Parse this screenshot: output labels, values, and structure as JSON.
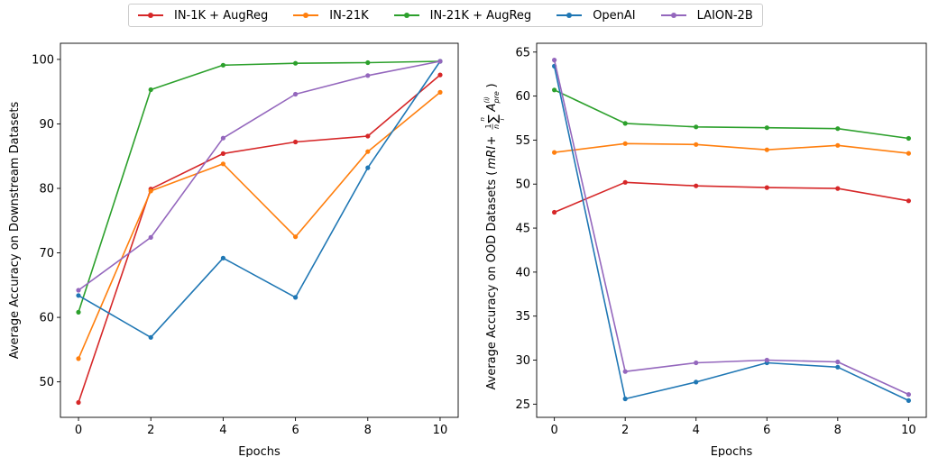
{
  "legend": [
    {
      "name": "IN-1K + AugReg",
      "color": "#d62728"
    },
    {
      "name": "IN-21K",
      "color": "#ff7f0e"
    },
    {
      "name": "IN-21K + AugReg",
      "color": "#2ca02c"
    },
    {
      "name": "OpenAI",
      "color": "#1f77b4"
    },
    {
      "name": "LAION-2B",
      "color": "#9467bd"
    }
  ],
  "chart_data": [
    {
      "type": "line",
      "title": "",
      "xlabel": "Epochs",
      "ylabel": "Average Accuracy on Downstream Datasets",
      "x": [
        0,
        2,
        4,
        6,
        8,
        10
      ],
      "xlim": [
        -0.5,
        10.5
      ],
      "ylim": [
        44.5,
        102.5
      ],
      "xticks": [
        0,
        2,
        4,
        6,
        8,
        10
      ],
      "yticks": [
        50,
        60,
        70,
        80,
        90,
        100
      ],
      "grid": false,
      "series": [
        {
          "name": "IN-1K + AugReg",
          "color": "#d62728",
          "values": [
            46.8,
            79.9,
            85.4,
            87.2,
            88.1,
            97.6
          ]
        },
        {
          "name": "IN-21K",
          "color": "#ff7f0e",
          "values": [
            53.6,
            79.6,
            83.8,
            72.5,
            85.7,
            94.9
          ]
        },
        {
          "name": "IN-21K + AugReg",
          "color": "#2ca02c",
          "values": [
            60.8,
            95.3,
            99.1,
            99.4,
            99.5,
            99.7
          ]
        },
        {
          "name": "OpenAI",
          "color": "#1f77b4",
          "values": [
            63.4,
            56.9,
            69.2,
            63.1,
            83.2,
            99.7
          ]
        },
        {
          "name": "LAION-2B",
          "color": "#9467bd",
          "values": [
            64.2,
            72.4,
            87.8,
            94.6,
            97.5,
            99.7
          ]
        }
      ]
    },
    {
      "type": "line",
      "title": "",
      "xlabel": "Epochs",
      "ylabel_parts": {
        "main": "Average Accuracy on OOD Datasets (",
        "mri": "mRI",
        "plus": " + ",
        "one": "1",
        "n": "n",
        "sum_top": "n",
        "sum_sym": "∑",
        "sum_bottom": "i",
        "A": "A",
        "A_sup": "(i)",
        "A_sub": "pre",
        "close": ")"
      },
      "x": [
        0,
        2,
        4,
        6,
        8,
        10
      ],
      "xlim": [
        -0.5,
        10.5
      ],
      "ylim": [
        23.5,
        66.0
      ],
      "xticks": [
        0,
        2,
        4,
        6,
        8,
        10
      ],
      "yticks": [
        25,
        30,
        35,
        40,
        45,
        50,
        55,
        60,
        65
      ],
      "grid": false,
      "series": [
        {
          "name": "IN-1K + AugReg",
          "color": "#d62728",
          "values": [
            46.8,
            50.2,
            49.8,
            49.6,
            49.5,
            48.1
          ]
        },
        {
          "name": "IN-21K",
          "color": "#ff7f0e",
          "values": [
            53.6,
            54.6,
            54.5,
            53.9,
            54.4,
            53.5
          ]
        },
        {
          "name": "IN-21K + AugReg",
          "color": "#2ca02c",
          "values": [
            60.7,
            56.9,
            56.5,
            56.4,
            56.3,
            55.2
          ]
        },
        {
          "name": "OpenAI",
          "color": "#1f77b4",
          "values": [
            63.4,
            25.6,
            27.5,
            29.7,
            29.2,
            25.4
          ]
        },
        {
          "name": "LAION-2B",
          "color": "#9467bd",
          "values": [
            64.1,
            28.7,
            29.7,
            30.0,
            29.8,
            26.1
          ]
        }
      ]
    }
  ]
}
